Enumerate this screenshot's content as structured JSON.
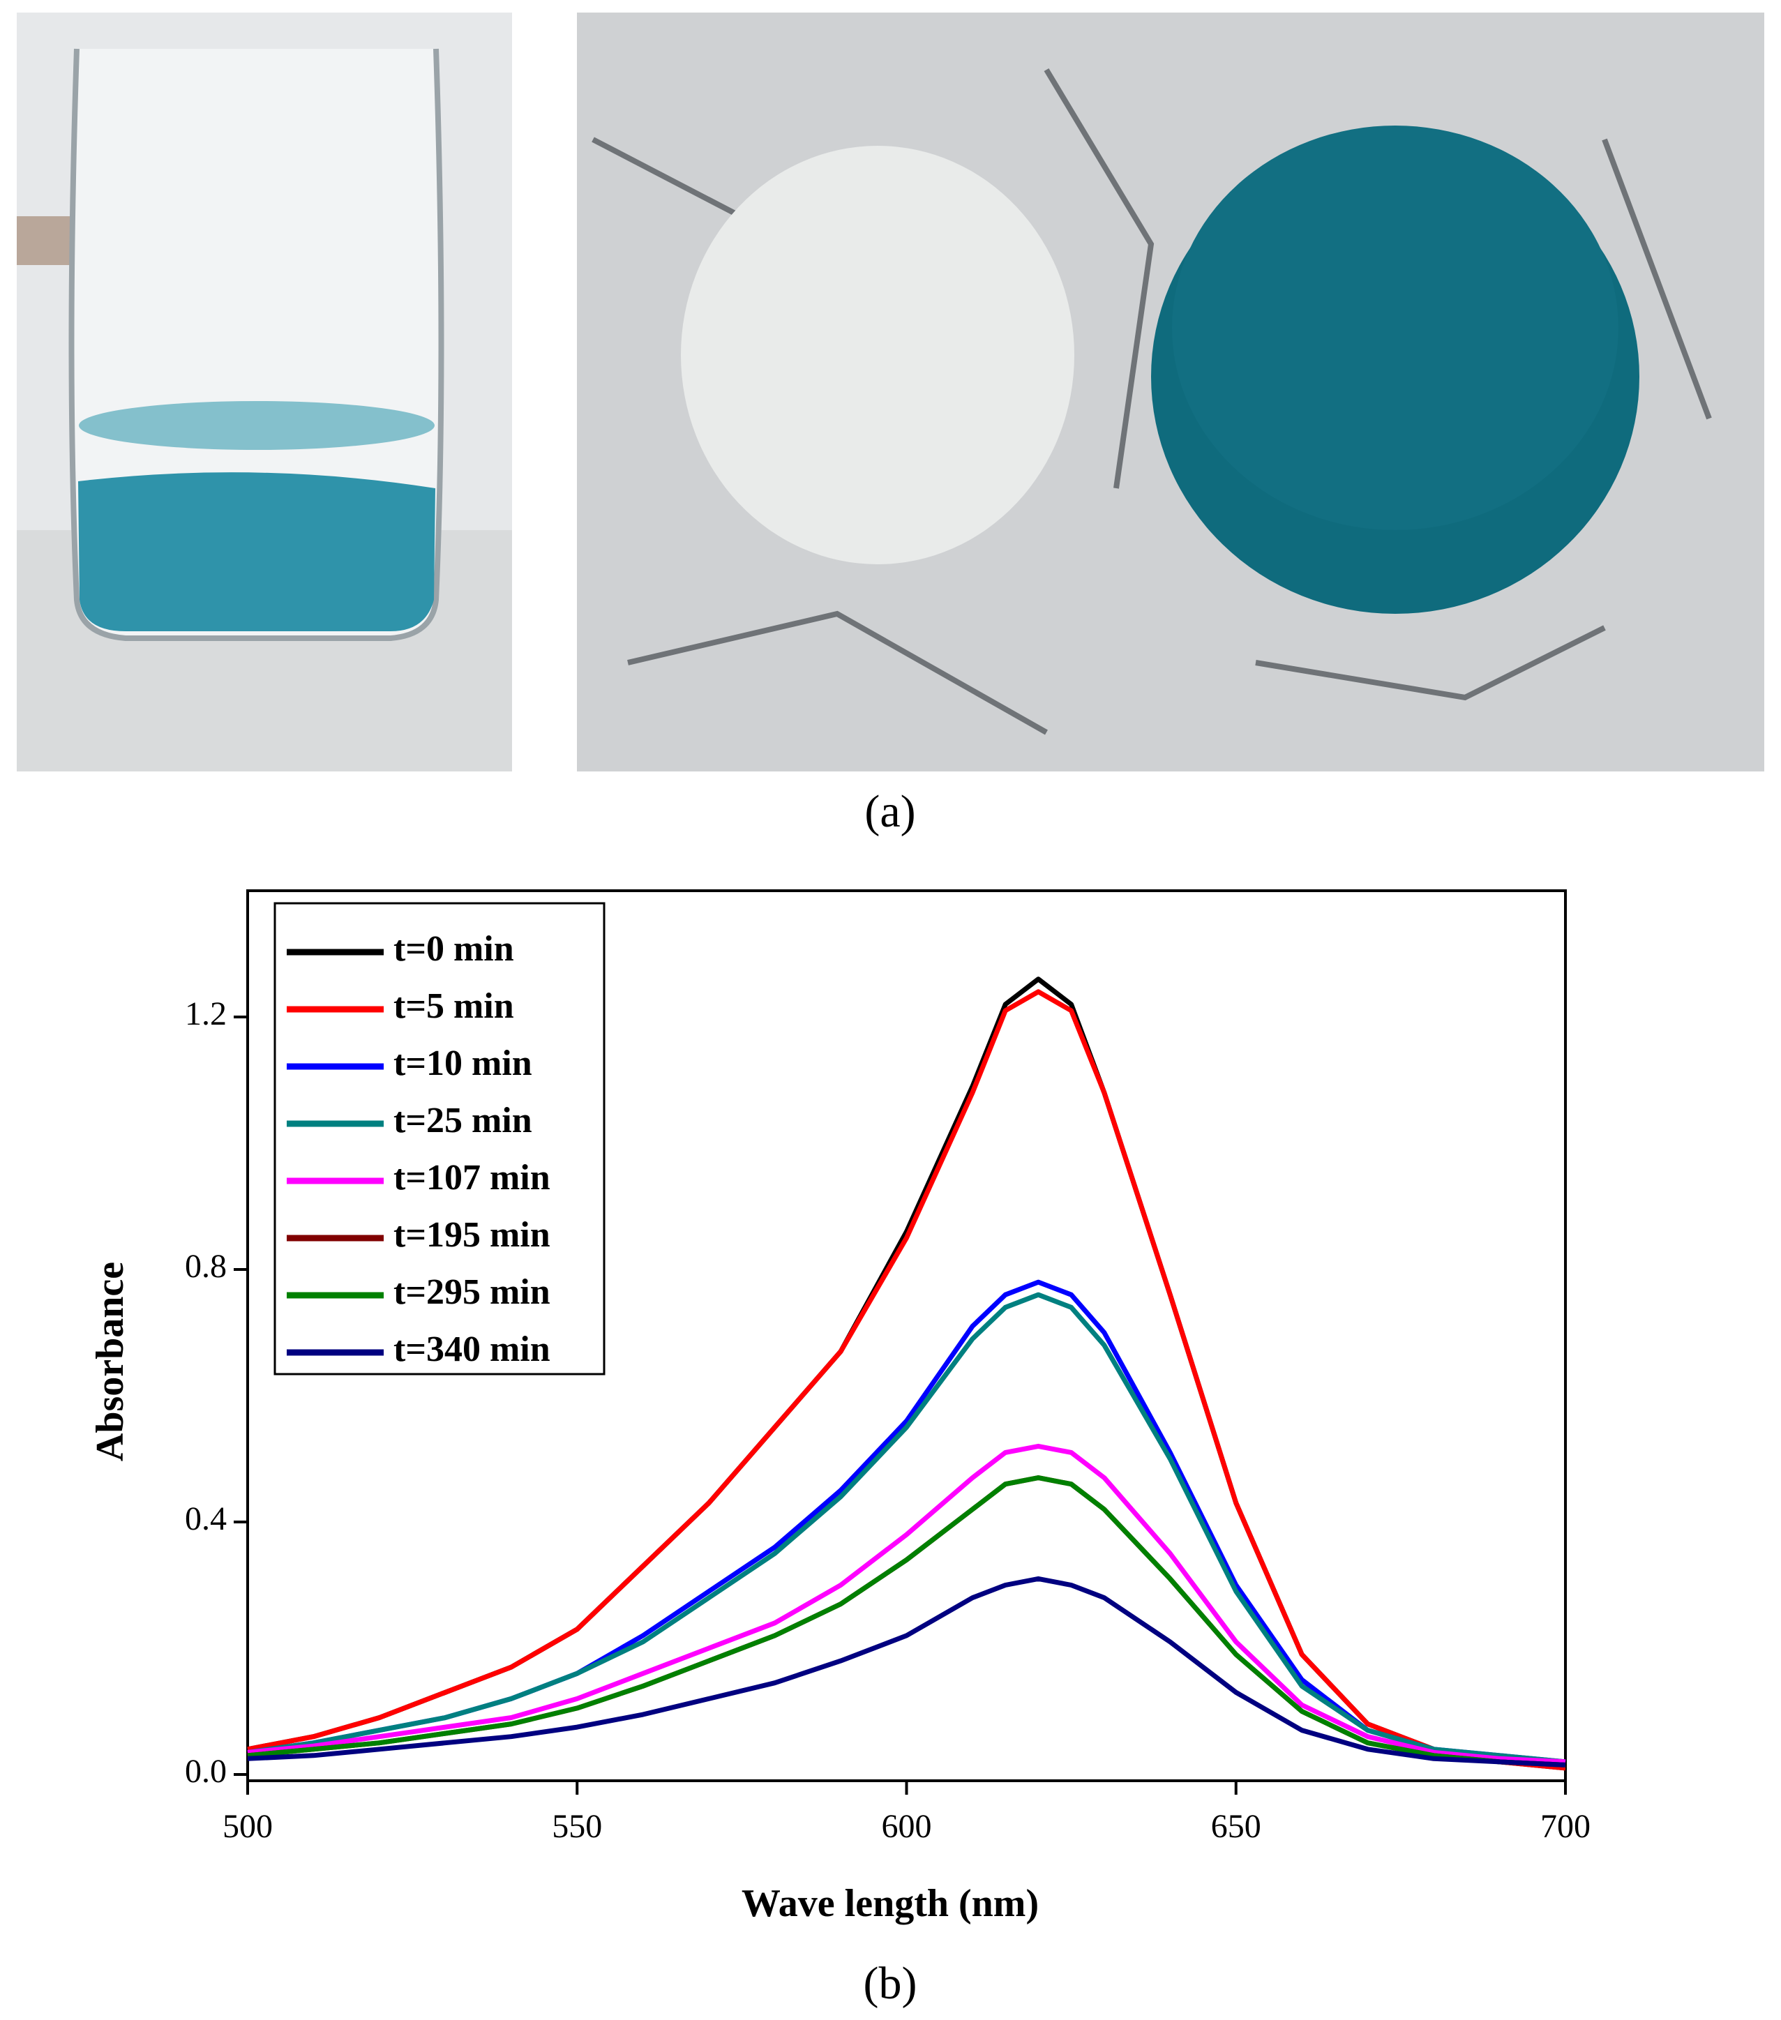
{
  "panel_a": {
    "label": "(a)"
  },
  "chart_data": {
    "type": "line",
    "label": "(b)",
    "x_label": "Wave length (nm)",
    "y_label": "Absorbance",
    "x": [
      500,
      510,
      520,
      530,
      540,
      550,
      560,
      570,
      580,
      590,
      600,
      610,
      615,
      620,
      625,
      630,
      640,
      650,
      660,
      670,
      680,
      690,
      700
    ],
    "series": [
      {
        "name": "t=0 min",
        "color": "#000000",
        "values": [
          0.04,
          0.06,
          0.09,
          0.13,
          0.17,
          0.23,
          0.33,
          0.43,
          0.55,
          0.67,
          0.86,
          1.09,
          1.22,
          1.26,
          1.22,
          1.08,
          0.76,
          0.43,
          0.19,
          0.08,
          0.04,
          0.02,
          0.01
        ]
      },
      {
        "name": "t=5 min",
        "color": "#ff0000",
        "values": [
          0.04,
          0.06,
          0.09,
          0.13,
          0.17,
          0.23,
          0.33,
          0.43,
          0.55,
          0.67,
          0.85,
          1.08,
          1.21,
          1.24,
          1.21,
          1.08,
          0.76,
          0.43,
          0.19,
          0.08,
          0.04,
          0.02,
          0.01
        ]
      },
      {
        "name": "t=10 min",
        "color": "#0000ff",
        "values": [
          0.035,
          0.05,
          0.07,
          0.09,
          0.12,
          0.16,
          0.22,
          0.29,
          0.36,
          0.45,
          0.56,
          0.71,
          0.76,
          0.78,
          0.76,
          0.7,
          0.51,
          0.3,
          0.15,
          0.07,
          0.04,
          0.03,
          0.02
        ]
      },
      {
        "name": "t=25 min",
        "color": "#008080",
        "values": [
          0.035,
          0.05,
          0.07,
          0.09,
          0.12,
          0.16,
          0.21,
          0.28,
          0.35,
          0.44,
          0.55,
          0.69,
          0.74,
          0.76,
          0.74,
          0.68,
          0.5,
          0.29,
          0.14,
          0.07,
          0.04,
          0.03,
          0.02
        ]
      },
      {
        "name": "t=107 min",
        "color": "#ff00ff",
        "values": [
          0.035,
          0.045,
          0.06,
          0.075,
          0.09,
          0.12,
          0.16,
          0.2,
          0.24,
          0.3,
          0.38,
          0.47,
          0.51,
          0.52,
          0.51,
          0.47,
          0.35,
          0.21,
          0.11,
          0.06,
          0.035,
          0.025,
          0.02
        ]
      },
      {
        "name": "t=195 min",
        "color": "#800000",
        "values": [
          0.03,
          0.04,
          0.05,
          0.065,
          0.08,
          0.105,
          0.14,
          0.18,
          0.22,
          0.27,
          0.34,
          0.42,
          0.46,
          0.47,
          0.46,
          0.42,
          0.31,
          0.19,
          0.1,
          0.05,
          0.03,
          0.02,
          0.015
        ]
      },
      {
        "name": "t=295 min",
        "color": "#008000",
        "values": [
          0.03,
          0.04,
          0.05,
          0.065,
          0.08,
          0.105,
          0.14,
          0.18,
          0.22,
          0.27,
          0.34,
          0.42,
          0.46,
          0.47,
          0.46,
          0.42,
          0.31,
          0.19,
          0.1,
          0.05,
          0.03,
          0.02,
          0.015
        ]
      },
      {
        "name": "t=340 min",
        "color": "#000080",
        "values": [
          0.025,
          0.03,
          0.04,
          0.05,
          0.06,
          0.075,
          0.095,
          0.12,
          0.145,
          0.18,
          0.22,
          0.28,
          0.3,
          0.31,
          0.3,
          0.28,
          0.21,
          0.13,
          0.07,
          0.04,
          0.025,
          0.02,
          0.015
        ]
      }
    ],
    "xlim": [
      500,
      700
    ],
    "xticks": [
      500,
      550,
      600,
      650,
      700
    ],
    "ylim": [
      -0.01,
      1.4
    ],
    "yticks": [
      {
        "value": 0,
        "label": "0.0"
      },
      0.4,
      0.8,
      1.2
    ]
  }
}
